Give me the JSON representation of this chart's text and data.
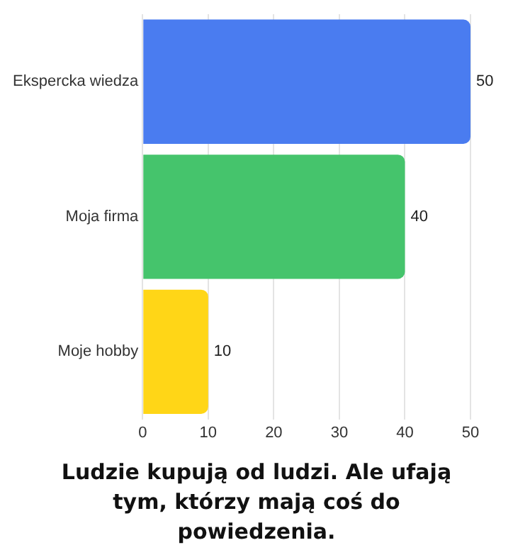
{
  "chart_data": {
    "type": "bar",
    "orientation": "horizontal",
    "title": "Ludzie kupują od ludzi. Ale ufają tym, którzy mają coś do powiedzenia.",
    "categories": [
      "Ekspercka wiedza",
      "Moja firma",
      "Moje hobby"
    ],
    "values": [
      50,
      40,
      10
    ],
    "colors": [
      "#4a7cf0",
      "#45c46c",
      "#ffd617"
    ],
    "xlim": [
      0,
      50
    ],
    "xticks": [
      0,
      10,
      20,
      30,
      40,
      50
    ],
    "grid": "x",
    "data_labels": true
  }
}
